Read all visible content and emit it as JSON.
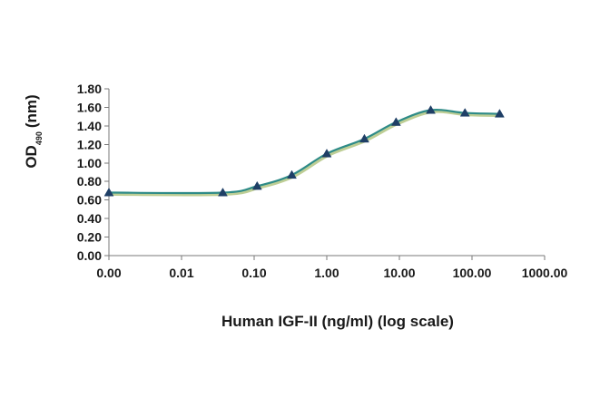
{
  "chart_data": {
    "type": "line",
    "title": "",
    "xlabel": "Human IGF-II (ng/ml) (log scale)",
    "ylabel": {
      "main": "OD",
      "subscript": "490",
      "unit": "(nm)"
    },
    "x_scale": "log",
    "x_ticks": [
      0.001,
      0.01,
      0.1,
      1,
      10,
      100,
      1000
    ],
    "x_tick_labels": [
      "0.00",
      "0.01",
      "0.10",
      "1.00",
      "10.00",
      "100.00",
      "1000.00"
    ],
    "y_ticks": [
      0.0,
      0.2,
      0.4,
      0.6,
      0.8,
      1.0,
      1.2,
      1.4,
      1.6,
      1.8
    ],
    "y_tick_labels": [
      "0.00",
      "0.20",
      "0.40",
      "0.60",
      "0.80",
      "1.00",
      "1.20",
      "1.40",
      "1.60",
      "1.80"
    ],
    "xlim": [
      0.001,
      1000
    ],
    "ylim": [
      0,
      1.8
    ],
    "grid": false,
    "legend": "none",
    "series": [
      {
        "marker": "triangle",
        "line_color": "#2e8b87",
        "shadow_color": "#b7c98a",
        "marker_color": "#1f3f66",
        "x": [
          0.001,
          0.037,
          0.11,
          0.33,
          1.0,
          3.3,
          9.0,
          27.0,
          80.0,
          240.0
        ],
        "y": [
          0.68,
          0.68,
          0.75,
          0.87,
          1.1,
          1.26,
          1.44,
          1.57,
          1.54,
          1.53
        ]
      }
    ]
  }
}
